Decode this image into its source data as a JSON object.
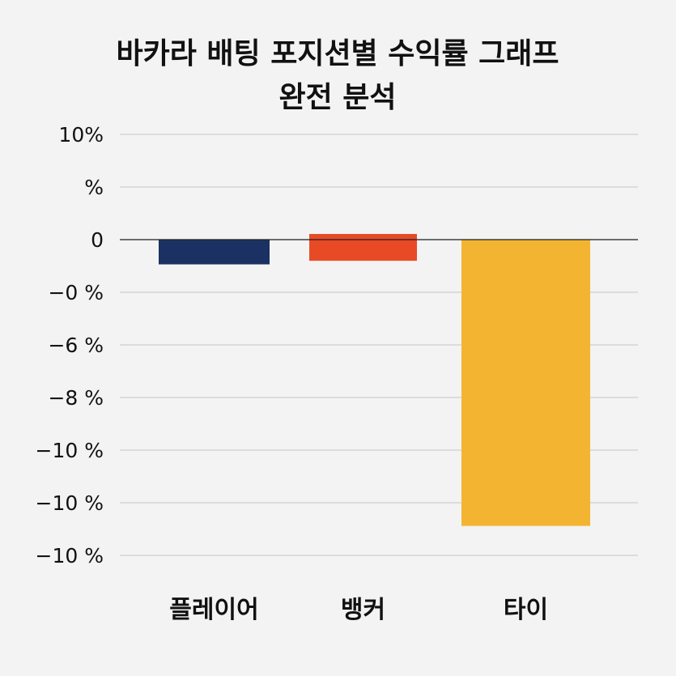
{
  "chart_data": {
    "type": "bar",
    "title_lines": [
      "바카라 배팅 포지션별 수익률 그래프",
      "완전 분석"
    ],
    "categories": [
      "플레이어",
      "뱅커",
      "타이"
    ],
    "values": [
      -1.24,
      -1.06,
      -14.36
    ],
    "colors": [
      "#1b3163",
      "#e84a26",
      "#f3b531"
    ],
    "y_tick_labels": [
      "10%",
      "%",
      "0",
      "−0 %",
      "−6 %",
      "−8 %",
      "−10 %",
      "−10 %",
      "−10 %"
    ],
    "xlabel": "",
    "ylabel": "",
    "ylim": [
      -16,
      4
    ],
    "grid": true,
    "legend": "none"
  }
}
